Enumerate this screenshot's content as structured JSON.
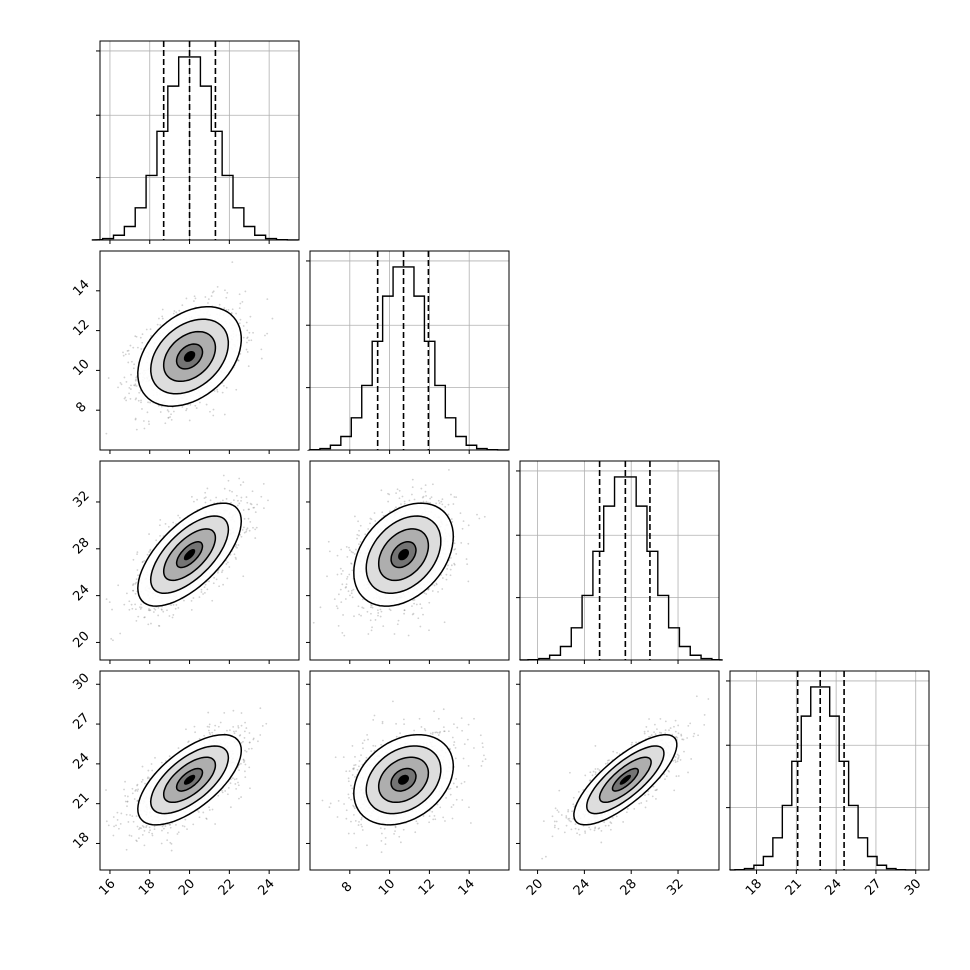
{
  "chart_data": {
    "type": "corner",
    "title": "",
    "grid": true,
    "parameters": [
      {
        "label": "",
        "range": [
          15.5,
          25.5
        ],
        "ticks": [
          16,
          18,
          20,
          22,
          24
        ],
        "quantiles": [
          18.7,
          20.0,
          21.3
        ],
        "mean": 20.0,
        "sd": 1.3
      },
      {
        "label": "",
        "range": [
          6.0,
          16.0
        ],
        "ticks": [
          8,
          10,
          12,
          14
        ],
        "quantiles": [
          9.4,
          10.7,
          11.95
        ],
        "mean": 10.7,
        "sd": 1.25
      },
      {
        "label": "",
        "range": [
          18.5,
          35.5
        ],
        "ticks": [
          20,
          24,
          28,
          32
        ],
        "quantiles": [
          25.3,
          27.5,
          29.6
        ],
        "mean": 27.5,
        "sd": 2.2
      },
      {
        "label": "",
        "range": [
          16.0,
          31.0
        ],
        "ticks": [
          18,
          21,
          24,
          27,
          30
        ],
        "quantiles": [
          21.1,
          22.8,
          24.6
        ],
        "mean": 22.8,
        "sd": 1.7
      }
    ],
    "correlations": [
      {
        "pair": [
          0,
          1
        ],
        "r": 0.35
      },
      {
        "pair": [
          0,
          2
        ],
        "r": 0.65
      },
      {
        "pair": [
          1,
          2
        ],
        "r": 0.35
      },
      {
        "pair": [
          0,
          3
        ],
        "r": 0.65
      },
      {
        "pair": [
          1,
          3
        ],
        "r": 0.3
      },
      {
        "pair": [
          2,
          3
        ],
        "r": 0.78
      }
    ],
    "histogram_bins": 20,
    "contour_levels_sigma": [
      0.5,
      1.0,
      1.5,
      2.0
    ]
  }
}
